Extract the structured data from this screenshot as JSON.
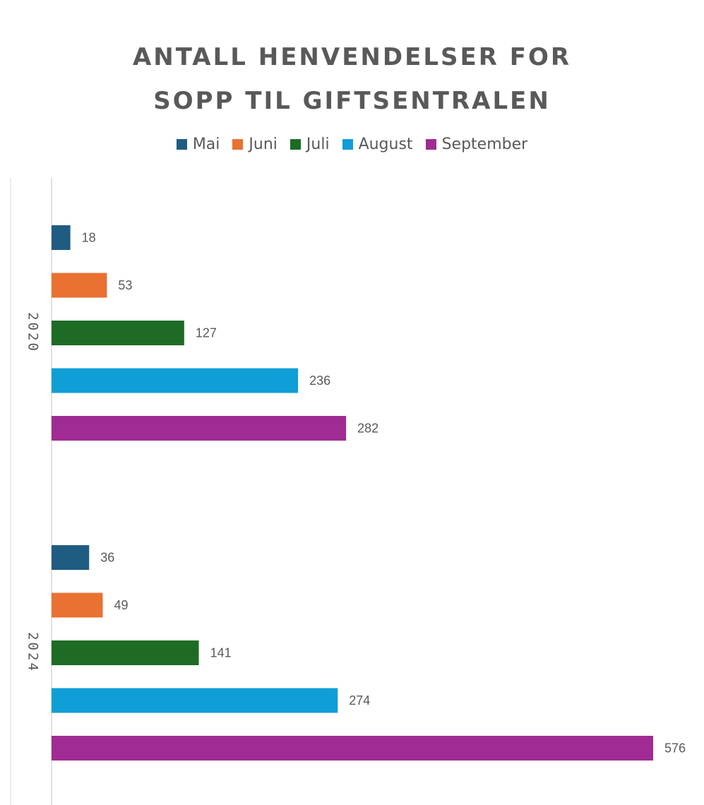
{
  "chart_data": {
    "type": "bar",
    "orientation": "horizontal",
    "title_lines": [
      "ANTALL HENVENDELSER FOR",
      "SOPP TIL GIFTSENTRALEN"
    ],
    "categories": [
      "2020",
      "2024"
    ],
    "series": [
      {
        "name": "Mai",
        "color": "#1F5C82",
        "values": [
          18,
          36
        ]
      },
      {
        "name": "Juni",
        "color": "#E97132",
        "values": [
          53,
          49
        ]
      },
      {
        "name": "Juli",
        "color": "#1E6B26",
        "values": [
          127,
          141
        ]
      },
      {
        "name": "August",
        "color": "#0F9ED5",
        "values": [
          236,
          274
        ]
      },
      {
        "name": "September",
        "color": "#A02B93",
        "values": [
          282,
          576
        ]
      }
    ],
    "legend_position": "top",
    "grid": false,
    "xlim": [
      0,
      576
    ]
  }
}
